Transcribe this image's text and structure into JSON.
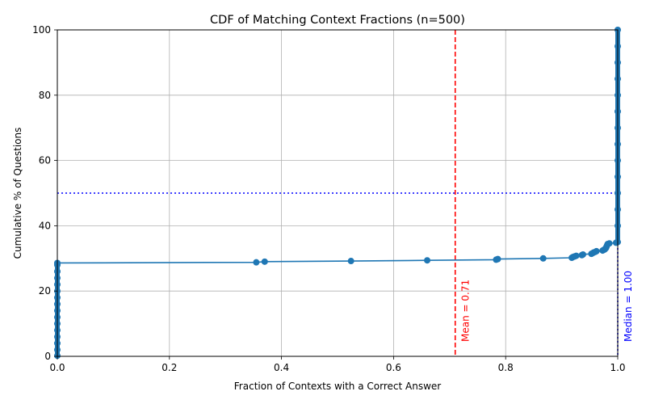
{
  "chart_data": {
    "type": "line",
    "title": "CDF of Matching Context Fractions (n=500)",
    "xlabel": "Fraction of Contexts with a Correct Answer",
    "ylabel": "Cumulative % of Questions",
    "xlim": [
      0.0,
      1.0
    ],
    "ylim": [
      0,
      100
    ],
    "xticks": [
      "0.0",
      "0.2",
      "0.4",
      "0.6",
      "0.8",
      "1.0"
    ],
    "xtick_values": [
      0.0,
      0.2,
      0.4,
      0.6,
      0.8,
      1.0
    ],
    "yticks": [
      "0",
      "20",
      "40",
      "60",
      "80",
      "100"
    ],
    "ytick_values": [
      0,
      20,
      40,
      60,
      80,
      100
    ],
    "grid": true,
    "series": [
      {
        "color": "#1f77b4",
        "markers": true,
        "points": [
          [
            0.0,
            0.2
          ],
          [
            0.0,
            2.0
          ],
          [
            0.0,
            4.0
          ],
          [
            0.0,
            6.0
          ],
          [
            0.0,
            8.0
          ],
          [
            0.0,
            10.0
          ],
          [
            0.0,
            12.0
          ],
          [
            0.0,
            14.0
          ],
          [
            0.0,
            16.0
          ],
          [
            0.0,
            18.0
          ],
          [
            0.0,
            20.0
          ],
          [
            0.0,
            22.0
          ],
          [
            0.0,
            24.0
          ],
          [
            0.0,
            26.0
          ],
          [
            0.0,
            28.0
          ],
          [
            0.0,
            28.6
          ],
          [
            0.355,
            28.8
          ],
          [
            0.37,
            29.0
          ],
          [
            0.524,
            29.2
          ],
          [
            0.66,
            29.4
          ],
          [
            0.783,
            29.6
          ],
          [
            0.786,
            29.8
          ],
          [
            0.867,
            30.0
          ],
          [
            0.918,
            30.2
          ],
          [
            0.92,
            30.4
          ],
          [
            0.923,
            30.6
          ],
          [
            0.926,
            30.8
          ],
          [
            0.936,
            31.0
          ],
          [
            0.938,
            31.2
          ],
          [
            0.953,
            31.4
          ],
          [
            0.955,
            31.6
          ],
          [
            0.957,
            31.8
          ],
          [
            0.96,
            32.0
          ],
          [
            0.962,
            32.2
          ],
          [
            0.973,
            32.4
          ],
          [
            0.975,
            32.6
          ],
          [
            0.977,
            32.8
          ],
          [
            0.978,
            33.0
          ],
          [
            0.979,
            33.2
          ],
          [
            0.98,
            33.6
          ],
          [
            0.981,
            34.0
          ],
          [
            0.982,
            34.4
          ],
          [
            0.985,
            34.6
          ],
          [
            0.997,
            34.8
          ],
          [
            1.0,
            35.0
          ],
          [
            1.0,
            40.0
          ],
          [
            1.0,
            45.0
          ],
          [
            1.0,
            50.0
          ],
          [
            1.0,
            55.0
          ],
          [
            1.0,
            60.0
          ],
          [
            1.0,
            65.0
          ],
          [
            1.0,
            70.0
          ],
          [
            1.0,
            75.0
          ],
          [
            1.0,
            80.0
          ],
          [
            1.0,
            85.0
          ],
          [
            1.0,
            90.0
          ],
          [
            1.0,
            95.0
          ],
          [
            1.0,
            100.0
          ]
        ]
      }
    ],
    "annotations": [
      {
        "kind": "vline",
        "value": 0.71,
        "label": "Mean = 0.71",
        "color": "#ff0000",
        "style": "dashed"
      },
      {
        "kind": "vline",
        "value": 1.0,
        "label": "Median = 1.00",
        "color": "#0000ff",
        "style": "dotted"
      },
      {
        "kind": "hline",
        "value": 50,
        "color": "#0000ff",
        "style": "dotted"
      }
    ]
  }
}
